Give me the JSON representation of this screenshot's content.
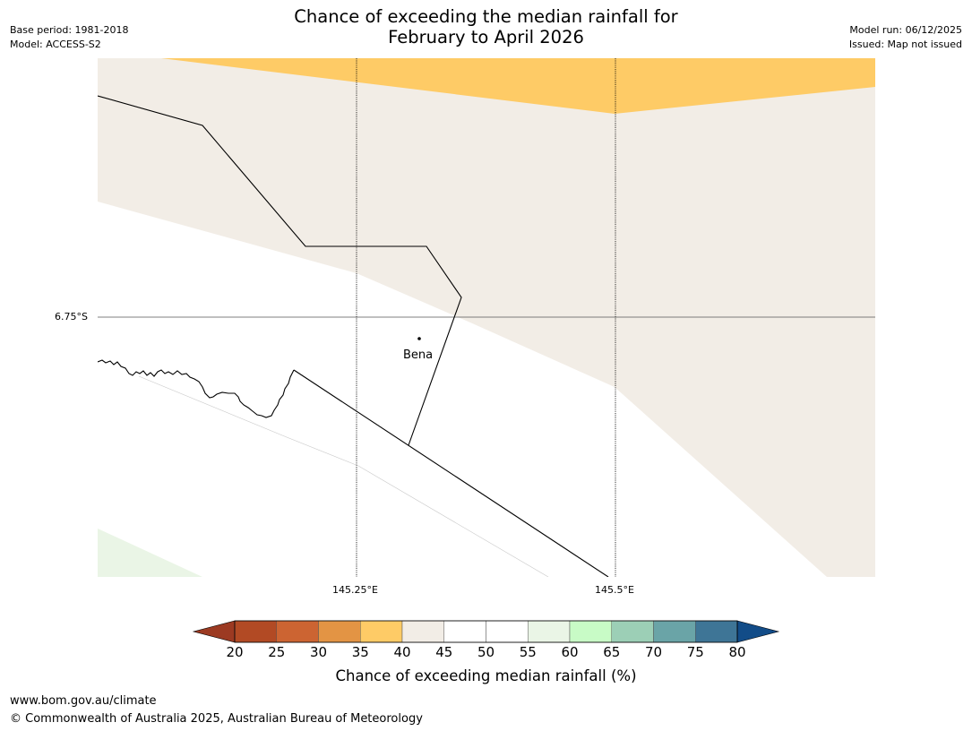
{
  "header": {
    "title_line1": "Chance of exceeding the median rainfall for",
    "title_line2": "February to April 2026",
    "base_period": "Base period: 1981-2018",
    "model": "Model: ACCESS-S2",
    "model_run": "Model run: 06/12/2025",
    "issued": "Issued: Map not issued"
  },
  "map": {
    "lat_label": "6.75°S",
    "lon_labels": [
      "145.25°E",
      "145.5°E"
    ],
    "place": {
      "name": "Bena",
      "marker": "dot"
    }
  },
  "colorbar": {
    "label": "Chance of exceeding median rainfall (%)",
    "ticks": [
      "20",
      "25",
      "30",
      "35",
      "40",
      "45",
      "50",
      "55",
      "60",
      "65",
      "70",
      "75",
      "80"
    ],
    "colors": [
      "#9c3a22",
      "#b24a24",
      "#cc6432",
      "#e39444",
      "#fecb66",
      "#f2ede6",
      "#ffffff",
      "#ffffff",
      "#eaf5e6",
      "#c8fbc6",
      "#9ccfb6",
      "#6aa4a7",
      "#3e7596",
      "#124c88"
    ]
  },
  "footer": {
    "url": "www.bom.gov.au/climate",
    "copyright": "© Commonwealth of Australia 2025, Australian Bureau of Meteorology"
  }
}
